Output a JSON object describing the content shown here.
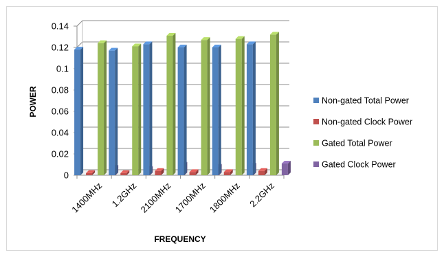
{
  "chart_data": {
    "type": "bar",
    "title": "",
    "xlabel": "FREQUENCY",
    "ylabel": "POWER",
    "categories": [
      "1400MHz",
      "1.2GHz",
      "2100MHz",
      "1700MHz",
      "1800MHz",
      "2.2GHz"
    ],
    "yticks": [
      "0",
      "0.02",
      "0.04",
      "0.06",
      "0.08",
      "0.1",
      "0.12",
      "0.14"
    ],
    "ylim": [
      0,
      0.14
    ],
    "grid": true,
    "legend_position": "right",
    "series": [
      {
        "name": "Non-gated Total Power",
        "color": "#4f81bd",
        "values": [
          0.118,
          0.117,
          0.123,
          0.12,
          0.12,
          0.123
        ]
      },
      {
        "name": "Non-gated Clock Power",
        "color": "#c0504d",
        "values": [
          0.002,
          0.002,
          0.004,
          0.003,
          0.003,
          0.004
        ]
      },
      {
        "name": "Gated Total Power",
        "color": "#9bbb59",
        "values": [
          0.124,
          0.121,
          0.131,
          0.127,
          0.128,
          0.132
        ]
      },
      {
        "name": "Gated Clock Power",
        "color": "#8064a2",
        "values": [
          0.007,
          0.006,
          0.01,
          0.008,
          0.009,
          0.011
        ]
      }
    ]
  }
}
